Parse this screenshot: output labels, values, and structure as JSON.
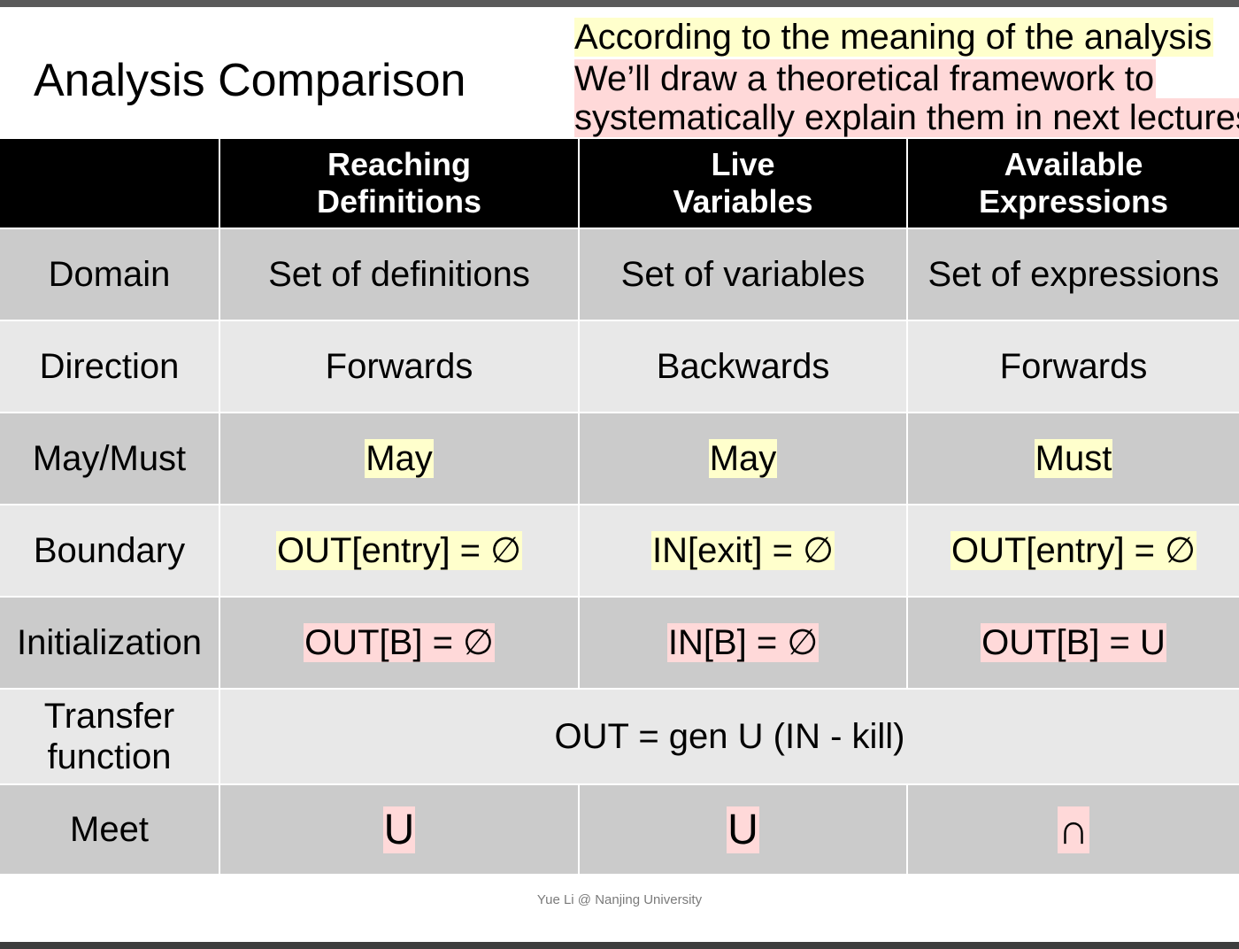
{
  "title": "Analysis Comparison",
  "notes": [
    "According to the meaning of the analysis",
    "We’ll draw a theoretical framework to",
    "systematically explain them in next lectures"
  ],
  "table": {
    "headers": [
      "",
      "Reaching\nDefinitions",
      "Live\nVariables",
      "Available\nExpressions"
    ],
    "rows": {
      "domain": {
        "label": "Domain",
        "cells": [
          "Set of definitions",
          "Set of variables",
          "Set of expressions"
        ]
      },
      "direction": {
        "label": "Direction",
        "cells": [
          "Forwards",
          "Backwards",
          "Forwards"
        ]
      },
      "maymust": {
        "label": "May/Must",
        "cells": [
          "May",
          "May",
          "Must"
        ]
      },
      "boundary": {
        "label": "Boundary",
        "cells": [
          "OUT[entry] = ∅",
          "IN[exit] = ∅",
          "OUT[entry] = ∅"
        ]
      },
      "initialization": {
        "label": "Initialization",
        "cells": [
          "OUT[B] = ∅",
          "IN[B] = ∅",
          "OUT[B] = U"
        ]
      },
      "transfer": {
        "label": "Transfer\nfunction",
        "value": "OUT = gen U (IN - kill)"
      },
      "meet": {
        "label": "Meet",
        "cells": [
          "U",
          "U",
          "∩"
        ]
      }
    }
  },
  "footer": "Yue Li @ Nanjing University",
  "colors": {
    "header_bg": "#000000",
    "row_dark": "#cbcbcb",
    "row_light": "#e8e8e8",
    "highlight_yellow": "#ffffcc",
    "highlight_pink": "#ffd9d9"
  }
}
